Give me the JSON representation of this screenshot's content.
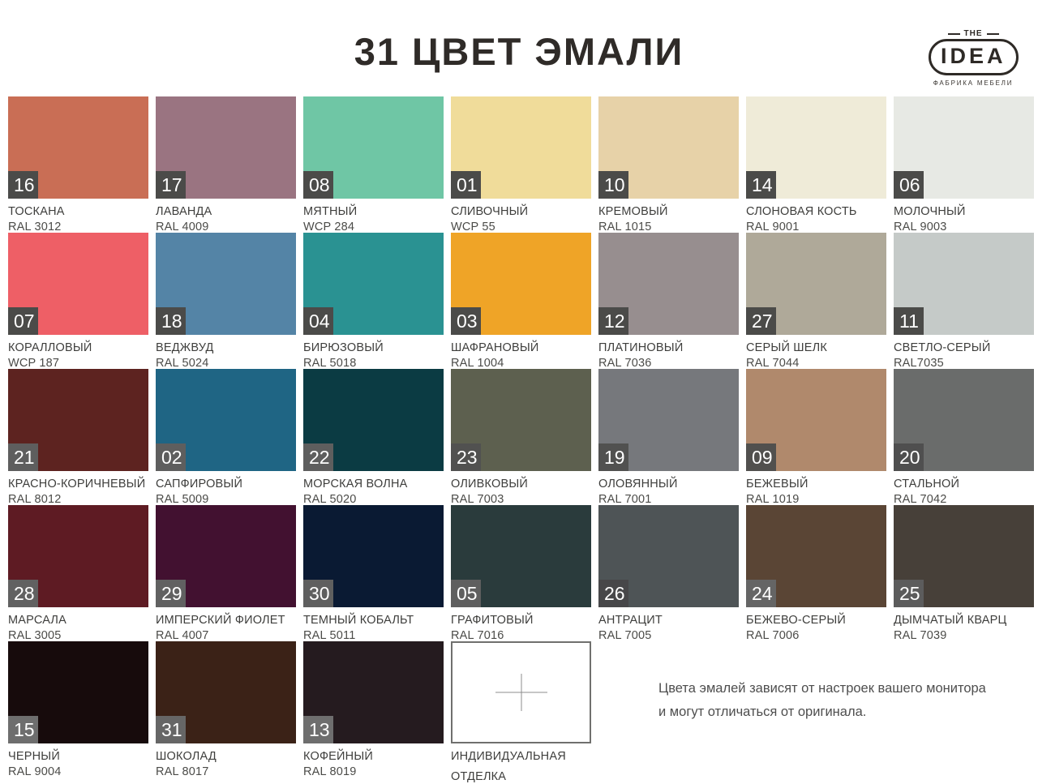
{
  "header": {
    "title": "31 ЦВЕТ ЭМАЛИ"
  },
  "logo": {
    "the": "THE",
    "name": "IDEA",
    "subtitle": "ФАБРИКА МЕБЕЛИ"
  },
  "disclaimer": {
    "line1": "Цвета эмалей зависят от настроек  вашего монитора",
    "line2": "и могут отличаться  от оригинала."
  },
  "custom": {
    "line1": "ИНДИВИДУАЛЬНАЯ",
    "line2": "ОТДЕЛКА",
    "icon": "plus-cross"
  },
  "swatches": [
    {
      "number": "16",
      "name": "ТОСКАНА",
      "code": "RAL 3012",
      "color": "#C96E55",
      "badge": "#4B4B49"
    },
    {
      "number": "17",
      "name": "ЛАВАНДА",
      "code": "RAL 4009",
      "color": "#9A7481",
      "badge": "#4B4B49"
    },
    {
      "number": "08",
      "name": "МЯТНЫЙ",
      "code": "WCP 284",
      "color": "#6FC6A5",
      "badge": "#4B4B49"
    },
    {
      "number": "01",
      "name": "СЛИВОЧНЫЙ",
      "code": "WCP 55",
      "color": "#F0DC9A",
      "badge": "#4B4B49"
    },
    {
      "number": "10",
      "name": "КРЕМОВЫЙ",
      "code": "RAL 1015",
      "color": "#E7D2A8",
      "badge": "#4B4B49"
    },
    {
      "number": "14",
      "name": "СЛОНОВАЯ КОСТЬ",
      "code": "RAL 9001",
      "color": "#EFEBD8",
      "badge": "#4B4B49"
    },
    {
      "number": "06",
      "name": "МОЛОЧНЫЙ",
      "code": "RAL 9003",
      "color": "#E7E9E4",
      "badge": "#4B4B49"
    },
    {
      "number": "07",
      "name": "КОРАЛЛОВЫЙ",
      "code": "WCP 187",
      "color": "#EE5F66",
      "badge": "#4B4B49"
    },
    {
      "number": "18",
      "name": "ВЕДЖВУД",
      "code": "RAL 5024",
      "color": "#5484A6",
      "badge": "#4B4B49"
    },
    {
      "number": "04",
      "name": "БИРЮЗОВЫЙ",
      "code": "RAL 5018",
      "color": "#2A9292",
      "badge": "#4B4B49"
    },
    {
      "number": "03",
      "name": "ШАФРАНОВЫЙ",
      "code": "RAL 1004",
      "color": "#EFA427",
      "badge": "#4B4B49"
    },
    {
      "number": "12",
      "name": "ПЛАТИНОВЫЙ",
      "code": "RAL 7036",
      "color": "#978E8F",
      "badge": "#4B4B49"
    },
    {
      "number": "27",
      "name": "СЕРЫЙ ШЕЛК",
      "code": "RAL 7044",
      "color": "#AFA999",
      "badge": "#4B4B49"
    },
    {
      "number": "11",
      "name": "СВЕТЛО-СЕРЫЙ",
      "code": "RAL7035",
      "color": "#C5CAC8",
      "badge": "#4B4B49"
    },
    {
      "number": "21",
      "name": "КРАСНО-КОРИЧНЕВЫЙ",
      "code": "RAL 8012",
      "color": "#5D2320",
      "badge": "#5E5E5E"
    },
    {
      "number": "02",
      "name": "САПФИРОВЫЙ",
      "code": "RAL 5009",
      "color": "#1F6584",
      "badge": "#5E5E5E"
    },
    {
      "number": "22",
      "name": "МОРСКАЯ ВОЛНА",
      "code": "RAL 5020",
      "color": "#0B3B43",
      "badge": "#5E5E5E"
    },
    {
      "number": "23",
      "name": "ОЛИВКОВЫЙ",
      "code": "RAL 7003",
      "color": "#5D604F",
      "badge": "#515150"
    },
    {
      "number": "19",
      "name": "ОЛОВЯННЫЙ",
      "code": "RAL 7001",
      "color": "#76787C",
      "badge": "#515150"
    },
    {
      "number": "09",
      "name": "БЕЖЕВЫЙ",
      "code": "RAL 1019",
      "color": "#B0896C",
      "badge": "#51504E"
    },
    {
      "number": "20",
      "name": "СТАЛЬНОЙ",
      "code": "RAL 7042",
      "color": "#6A6C6B",
      "badge": "#4F4F4F"
    },
    {
      "number": "28",
      "name": "МАРСАЛА",
      "code": "RAL 3005",
      "color": "#5E1B23",
      "badge": "#616161"
    },
    {
      "number": "29",
      "name": "ИМПЕРСКИЙ ФИОЛЕТ",
      "code": "RAL 4007",
      "color": "#421130",
      "badge": "#616161"
    },
    {
      "number": "30",
      "name": "ТЕМНЫЙ КОБАЛЬТ",
      "code": "RAL 5011",
      "color": "#0A1A33",
      "badge": "#5F5F5F"
    },
    {
      "number": "05",
      "name": "ГРАФИТОВЫЙ",
      "code": "RAL 7016",
      "color": "#2A3B3C",
      "badge": "#5F5F5F"
    },
    {
      "number": "26",
      "name": "АНТРАЦИТ",
      "code": "RAL 7005",
      "color": "#4E5456",
      "badge": "#474749"
    },
    {
      "number": "24",
      "name": "БЕЖЕВО-СЕРЫЙ",
      "code": "RAL 7006",
      "color": "#5A4535",
      "badge": "#656565"
    },
    {
      "number": "25",
      "name": "ДЫМЧАТЫЙ КВАРЦ",
      "code": "RAL 7039",
      "color": "#474039",
      "badge": "#5C5C5C"
    },
    {
      "number": "15",
      "name": "ЧЕРНЫЙ",
      "code": "RAL 9004",
      "color": "#170B0C",
      "badge": "#6E6E6E"
    },
    {
      "number": "31",
      "name": "ШОКОЛАД",
      "code": "RAL 8017",
      "color": "#3B2217",
      "badge": "#666666"
    },
    {
      "number": "13",
      "name": "КОФЕЙНЫЙ",
      "code": "RAL 8019",
      "color": "#251B1F",
      "badge": "#6E6E6E"
    }
  ]
}
